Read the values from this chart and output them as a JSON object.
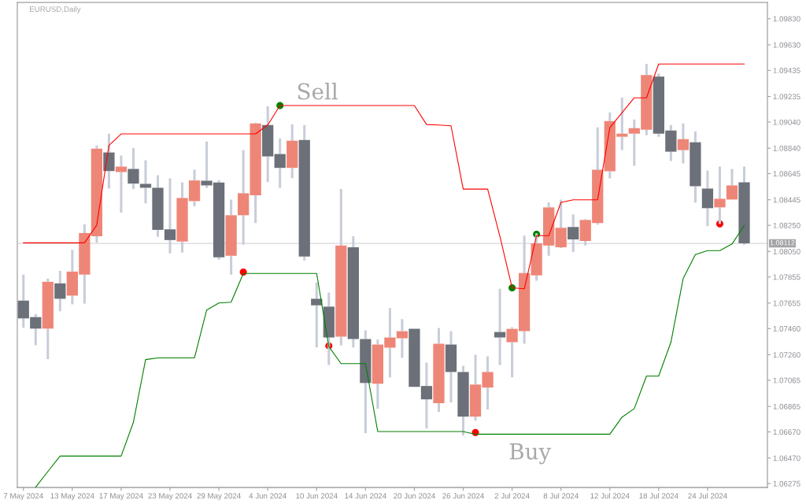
{
  "chart_data": {
    "type": "candlestick",
    "title": "EURUSD,Daily",
    "categories": [
      "7 May 2024",
      null,
      null,
      null,
      "13 May 2024",
      null,
      null,
      null,
      "17 May 2024",
      null,
      null,
      null,
      "23 May 2024",
      null,
      null,
      null,
      "29 May 2024",
      null,
      null,
      null,
      "4 Jun 2024",
      null,
      null,
      null,
      "10 Jun 2024",
      null,
      null,
      null,
      "14 Jun 2024",
      null,
      null,
      null,
      "20 Jun 2024",
      null,
      null,
      null,
      "26 Jun 2024",
      null,
      null,
      null,
      "2 Jul 2024",
      null,
      null,
      null,
      "8 Jul 2024",
      null,
      null,
      null,
      "12 Jul 2024",
      null,
      null,
      null,
      "18 Jul 2024",
      null,
      null,
      null,
      "24 Jul 2024",
      null,
      null,
      null
    ],
    "series": [
      {
        "type": "line",
        "color": "#ff0000",
        "values": [
          1.08116,
          1.08116,
          1.08116,
          1.08116,
          1.08116,
          1.08116,
          1.08251,
          1.08861,
          1.08949,
          1.08949,
          1.08949,
          1.08949,
          1.08949,
          1.08949,
          1.08949,
          1.08949,
          1.08949,
          1.08949,
          1.08949,
          1.08949,
          1.09017,
          1.09166,
          1.09166,
          1.09166,
          1.09166,
          1.09166,
          1.09166,
          1.09166,
          1.09166,
          1.09166,
          1.09166,
          1.09166,
          1.09166,
          1.09021,
          1.09017,
          1.09011,
          1.08527,
          1.08527,
          1.08527,
          1.08166,
          1.07772,
          1.07764,
          1.08171,
          1.08171,
          1.08425,
          1.08445,
          1.08445,
          1.08445,
          1.08997,
          1.09111,
          1.09225,
          1.09225,
          1.09484,
          1.09484,
          1.09484,
          1.09484,
          1.09484,
          1.09484,
          1.09484,
          1.09484
        ]
      },
      {
        "type": "line",
        "color": "#008000",
        "values": [
          null,
          1.06247,
          1.06367,
          1.06485,
          1.06485,
          1.06485,
          1.06485,
          1.06485,
          1.06485,
          1.06743,
          1.07223,
          1.07236,
          1.07236,
          1.07236,
          1.07236,
          1.07602,
          1.07656,
          1.07662,
          1.07882,
          1.07882,
          1.07882,
          1.07882,
          1.07882,
          1.07882,
          1.07882,
          1.07322,
          1.07192,
          1.07192,
          1.07192,
          1.06673,
          1.06673,
          1.06673,
          1.06673,
          1.06673,
          1.06673,
          1.06673,
          1.06673,
          1.06652,
          1.06652,
          1.06652,
          1.06652,
          1.06652,
          1.06652,
          1.06652,
          1.06652,
          1.06652,
          1.06652,
          1.06652,
          1.06652,
          1.06783,
          1.06848,
          1.07097,
          1.07097,
          1.07356,
          1.07842,
          1.08026,
          1.08056,
          1.08056,
          1.08107,
          1.08248
        ]
      },
      {
        "color": "#c8cdd9",
        "colors": [
          "#6b7079",
          "#6b7079",
          "#ee8677",
          "#6b7079",
          "#ee8677",
          "#ee8677",
          "#ee8677",
          "#6b7079",
          "#ee8677",
          "#6b7079",
          "#6b7079",
          "#6b7079",
          "#6b7079",
          "#ee8677",
          "#ee8677",
          "#6b7079",
          "#6b7079",
          "#ee8677",
          "#ee8677",
          "#ee8677",
          "#6b7079",
          "#6b7079",
          "#ee8677",
          "#6b7079",
          "#6b7079",
          "#6b7079",
          "#ee8677",
          "#6b7079",
          "#6b7079",
          "#ee8677",
          "#ee8677",
          "#ee8677",
          "#6b7079",
          "#6b7079",
          "#ee8677",
          "#6b7079",
          "#6b7079",
          "#ee8677",
          "#ee8677",
          "#6b7079",
          "#ee8677",
          "#ee8677",
          "#ee8677",
          "#ee8677",
          "#ee8677",
          "#6b7079",
          "#ee8677",
          "#ee8677",
          "#ee8677",
          "#ee8677",
          "#ee8677",
          "#ee8677",
          "#6b7079",
          "#6b7079",
          "#ee8677",
          "#6b7079",
          "#6b7079",
          "#ee8677",
          "#ee8677",
          "#6b7079"
        ],
        "ohlc": [
          [
            1.07674,
            1.07872,
            1.07466,
            1.07538
          ],
          [
            1.07548,
            1.07572,
            1.07332,
            1.0746
          ],
          [
            1.0746,
            1.07842,
            1.07226,
            1.07818
          ],
          [
            1.07806,
            1.07902,
            1.07592,
            1.07688
          ],
          [
            1.07712,
            1.08062,
            1.07646,
            1.07896
          ],
          [
            1.07873,
            1.08257,
            1.07652,
            1.08191
          ],
          [
            1.08167,
            1.08861,
            1.08118,
            1.08837
          ],
          [
            1.08807,
            1.08951,
            1.08531,
            1.08665
          ],
          [
            1.08657,
            1.08783,
            1.08347,
            1.08699
          ],
          [
            1.08681,
            1.08843,
            1.08527,
            1.08569
          ],
          [
            1.08567,
            1.08747,
            1.08417,
            1.08537
          ],
          [
            1.08537,
            1.08633,
            1.08162,
            1.08215
          ],
          [
            1.08219,
            1.08609,
            1.08035,
            1.08137
          ],
          [
            1.08126,
            1.08579,
            1.08041,
            1.08459
          ],
          [
            1.08435,
            1.08675,
            1.08395,
            1.08593
          ],
          [
            1.08591,
            1.08891,
            1.08535,
            1.08555
          ],
          [
            1.08577,
            1.08595,
            1.07987,
            1.08005
          ],
          [
            1.08017,
            1.08447,
            1.07872,
            1.08327
          ],
          [
            1.08327,
            1.08825,
            1.08101,
            1.08495
          ],
          [
            1.08479,
            1.09035,
            1.08267,
            1.09029
          ],
          [
            1.09017,
            1.0916,
            1.08581,
            1.08777
          ],
          [
            1.08795,
            1.08915,
            1.08535,
            1.08689
          ],
          [
            1.08689,
            1.09023,
            1.08611,
            1.08897
          ],
          [
            1.08903,
            1.09017,
            1.07981,
            1.08011
          ],
          [
            1.07688,
            1.07812,
            1.07316,
            1.07638
          ],
          [
            1.07628,
            1.07736,
            1.07182,
            1.07392
          ],
          [
            1.07398,
            1.08527,
            1.07332,
            1.08095
          ],
          [
            1.08082,
            1.08166,
            1.07316,
            1.0738
          ],
          [
            1.0738,
            1.07446,
            1.06661,
            1.07044
          ],
          [
            1.07038,
            1.07376,
            1.06847,
            1.07338
          ],
          [
            1.07314,
            1.07616,
            1.07086,
            1.07392
          ],
          [
            1.07386,
            1.07532,
            1.07236,
            1.0744
          ],
          [
            1.07458,
            1.07458,
            1.07015,
            1.07015
          ],
          [
            1.07021,
            1.072,
            1.06697,
            1.06919
          ],
          [
            1.06889,
            1.07464,
            1.06823,
            1.07344
          ],
          [
            1.07338,
            1.0744,
            1.06895,
            1.07128
          ],
          [
            1.07128,
            1.07176,
            1.06643,
            1.06787
          ],
          [
            1.06787,
            1.0726,
            1.06755,
            1.07032
          ],
          [
            1.07009,
            1.07248,
            1.06841,
            1.07128
          ],
          [
            1.07434,
            1.07764,
            1.07182,
            1.07392
          ],
          [
            1.07356,
            1.0747,
            1.07086,
            1.07458
          ],
          [
            1.0744,
            1.08171,
            1.07344,
            1.07884
          ],
          [
            1.07867,
            1.08189,
            1.07826,
            1.08112
          ],
          [
            1.08095,
            1.08425,
            1.08017,
            1.08387
          ],
          [
            1.08082,
            1.08447,
            1.08076,
            1.08231
          ],
          [
            1.08237,
            1.08333,
            1.08046,
            1.08142
          ],
          [
            1.0813,
            1.08297,
            1.08095,
            1.08291
          ],
          [
            1.08267,
            1.08999,
            1.08255,
            1.08675
          ],
          [
            1.08663,
            1.09113,
            1.08609,
            1.09047
          ],
          [
            1.08927,
            1.09226,
            1.08825,
            1.08951
          ],
          [
            1.08951,
            1.09059,
            1.08705,
            1.08993
          ],
          [
            1.08981,
            1.09484,
            1.08939,
            1.094
          ],
          [
            1.09388,
            1.09412,
            1.08927,
            1.08951
          ],
          [
            1.08975,
            1.09017,
            1.08741,
            1.08813
          ],
          [
            1.08825,
            1.09029,
            1.08723,
            1.08909
          ],
          [
            1.08885,
            1.08969,
            1.08423,
            1.08549
          ],
          [
            1.08531,
            1.08669,
            1.08243,
            1.08381
          ],
          [
            1.08387,
            1.08699,
            1.08261,
            1.08453
          ],
          [
            1.08447,
            1.08681,
            1.08447,
            1.08555
          ],
          [
            1.08579,
            1.08699,
            1.081,
            1.08112
          ]
        ]
      },
      {
        "type": "scatter",
        "color": "#008000",
        "marker": "circle",
        "values": [
          null,
          null,
          null,
          null,
          null,
          null,
          null,
          null,
          null,
          null,
          null,
          null,
          null,
          null,
          null,
          null,
          null,
          null,
          null,
          null,
          null,
          1.09166,
          null,
          null,
          null,
          null,
          null,
          null,
          null,
          null,
          null,
          null,
          null,
          null,
          null,
          null,
          null,
          null,
          null,
          null,
          1.07772,
          null,
          1.08182,
          null,
          null,
          null,
          null,
          null,
          null,
          null,
          null,
          null,
          null,
          null,
          null,
          null,
          null,
          null,
          null,
          null
        ]
      },
      {
        "type": "scatter",
        "color": "#ff0000",
        "marker": "circle",
        "values": [
          null,
          null,
          null,
          null,
          null,
          null,
          null,
          null,
          null,
          null,
          null,
          null,
          null,
          null,
          null,
          null,
          null,
          null,
          1.07892,
          null,
          null,
          null,
          null,
          null,
          null,
          1.07328,
          null,
          null,
          null,
          null,
          null,
          null,
          null,
          null,
          null,
          null,
          null,
          1.06665,
          null,
          null,
          null,
          null,
          null,
          null,
          null,
          null,
          null,
          null,
          null,
          null,
          null,
          null,
          null,
          null,
          null,
          null,
          null,
          1.08261,
          null,
          null
        ]
      }
    ],
    "ylim": [
      1.06245,
      1.09955
    ],
    "yticks": [
      {
        "value": 1.0983,
        "label": "1.09830"
      },
      {
        "value": 1.0963,
        "label": "1.09630"
      },
      1.09435,
      1.09235,
      {
        "value": 1.0904,
        "label": "1.09040"
      },
      {
        "value": 1.0884,
        "label": "1.08840"
      },
      1.08645,
      1.08445,
      {
        "value": 1.0825,
        "label": "1.08250"
      },
      {
        "value": 1.0805,
        "label": "1.08050"
      },
      1.07855,
      1.07655,
      {
        "value": 1.0746,
        "label": "1.07460"
      },
      {
        "value": 1.0726,
        "label": "1.07260"
      },
      1.07065,
      1.06865,
      {
        "value": 1.0667,
        "label": "1.06670"
      },
      {
        "value": 1.0647,
        "label": "1.06470"
      },
      1.06275
    ],
    "ref_lines": [
      {
        "axis": "y",
        "value": 1.08112,
        "label": "1.08112",
        "color": "#d8d8dc"
      }
    ],
    "annotations": [
      "Sell",
      "Buy"
    ]
  }
}
